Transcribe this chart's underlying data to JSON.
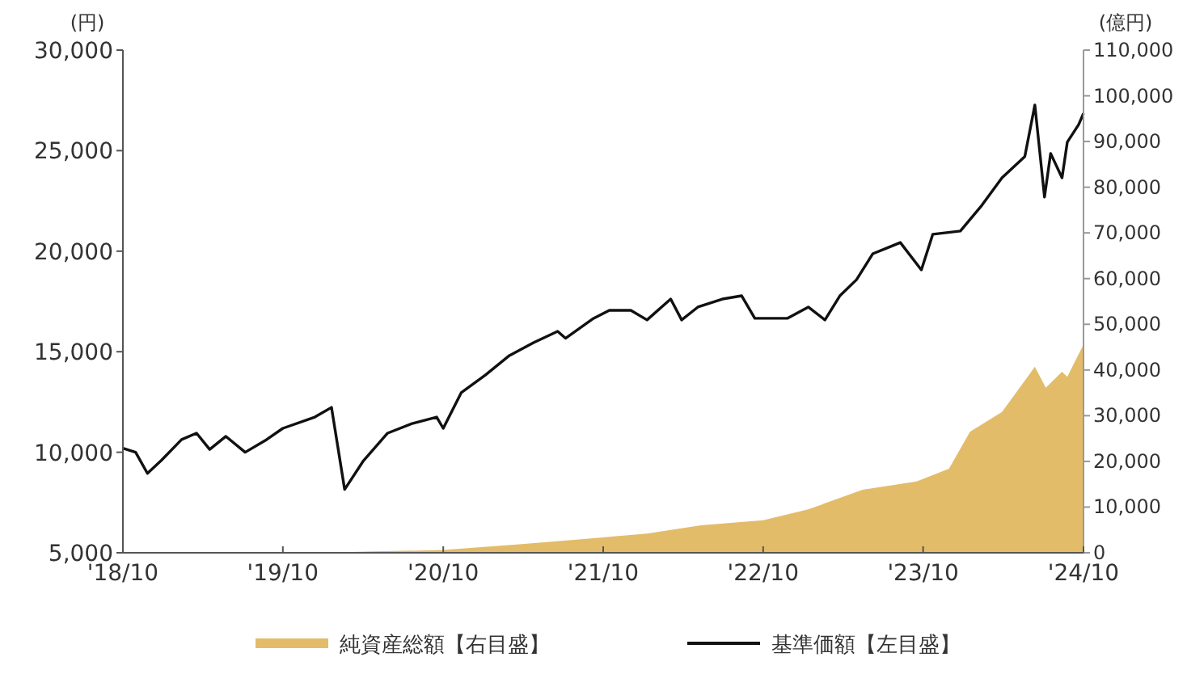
{
  "chart_data": {
    "type": "line",
    "ylabel": "(円)",
    "y2label": "(億円)",
    "legend": "bottom",
    "grid": false,
    "xlim": [
      "2018-10",
      "2024-10"
    ],
    "xticks": [
      {
        "value": "2018-10",
        "label": "'18/10"
      },
      {
        "value": "2019-10",
        "label": "'19/10"
      },
      {
        "value": "2020-10",
        "label": "'20/10"
      },
      {
        "value": "2021-10",
        "label": "'21/10"
      },
      {
        "value": "2022-10",
        "label": "'22/10"
      },
      {
        "value": "2023-10",
        "label": "'23/10"
      },
      {
        "value": "2024-10",
        "label": "'24/10"
      }
    ],
    "ylim": [
      5000,
      30000
    ],
    "yticks": [
      {
        "value": 5000,
        "label": "5,000"
      },
      {
        "value": 10000,
        "label": "10,000"
      },
      {
        "value": 15000,
        "label": "15,000"
      },
      {
        "value": 20000,
        "label": "20,000"
      },
      {
        "value": 25000,
        "label": "25,000"
      },
      {
        "value": 30000,
        "label": "30,000"
      }
    ],
    "y2lim": [
      0,
      110000
    ],
    "y2ticks": [
      0,
      {
        "value": 10000,
        "label": "10,000"
      },
      {
        "value": 20000,
        "label": "20,000"
      },
      {
        "value": 30000,
        "label": "30,000"
      },
      {
        "value": 40000,
        "label": "40,000"
      },
      {
        "value": 50000,
        "label": "50,000"
      },
      {
        "value": 60000,
        "label": "60,000"
      },
      {
        "value": 70000,
        "label": "70,000"
      },
      {
        "value": 80000,
        "label": "80,000"
      },
      {
        "value": 90000,
        "label": "90,000"
      },
      {
        "value": 100000,
        "label": "100,000"
      },
      {
        "value": 110000,
        "label": "110,000"
      }
    ],
    "series": [
      {
        "name": "純資産総額【右目盛】",
        "type": "area",
        "axis": "y2",
        "color": "#e3bc6a",
        "x": [
          "2020-01-02",
          "2020-04-21",
          "2020-10-01",
          "2021-03-18",
          "2021-09-09",
          "2022-01-09",
          "2022-05-12",
          "2022-10-01",
          "2023-01-12",
          "2023-05-16",
          "2023-09-16",
          "2023-10-12",
          "2023-11-29",
          "2024-01-16",
          "2024-03-29",
          "2024-06-12",
          "2024-07-07",
          "2024-08-13",
          "2024-08-25",
          "2024-10-01"
        ],
        "values": [
          0,
          300,
          600,
          1800,
          3200,
          4200,
          6000,
          7100,
          9500,
          13800,
          15600,
          16600,
          18400,
          26500,
          30800,
          40700,
          36100,
          39600,
          38500,
          45600
        ]
      },
      {
        "name": "基準価額【左目盛】",
        "type": "line",
        "color": "#111111",
        "x": [
          "2018-10-01",
          "2018-10-30",
          "2018-11-26",
          "2018-12-28",
          "2019-02-12",
          "2019-03-18",
          "2019-04-17",
          "2019-05-24",
          "2019-07-07",
          "2019-08-25",
          "2019-10-01",
          "2019-12-13",
          "2020-01-20",
          "2020-02-19",
          "2020-04-02",
          "2020-05-27",
          "2020-07-22",
          "2020-09-16",
          "2020-10-01",
          "2020-11-11",
          "2021-01-05",
          "2021-03-01",
          "2021-04-25",
          "2021-06-19",
          "2021-07-07",
          "2021-09-09",
          "2021-10-15",
          "2021-12-03",
          "2022-01-09",
          "2022-03-04",
          "2022-03-29",
          "2022-05-05",
          "2022-06-30",
          "2022-08-13",
          "2022-09-12",
          "2022-11-25",
          "2023-01-12",
          "2023-02-19",
          "2023-03-25",
          "2023-05-02",
          "2023-06-08",
          "2023-07-14",
          "2023-08-10",
          "2023-09-27",
          "2023-10-23",
          "2023-12-25",
          "2024-02-12",
          "2024-03-29",
          "2024-05-20",
          "2024-06-12",
          "2024-07-04",
          "2024-07-18",
          "2024-08-13",
          "2024-08-25",
          "2024-09-20",
          "2024-10-01"
        ],
        "values": [
          10200,
          10000,
          8950,
          9600,
          10630,
          10950,
          10140,
          10790,
          10000,
          10630,
          11190,
          11750,
          12230,
          8150,
          9580,
          10950,
          11430,
          11750,
          11190,
          12960,
          13840,
          14810,
          15450,
          16010,
          15670,
          16660,
          17060,
          17060,
          16580,
          17620,
          16580,
          17220,
          17620,
          17780,
          16660,
          16660,
          17220,
          16580,
          17780,
          18580,
          19870,
          20190,
          20430,
          19070,
          20840,
          21000,
          22280,
          23650,
          24700,
          27270,
          22690,
          24860,
          23650,
          25420,
          26300,
          26860
        ]
      }
    ]
  }
}
